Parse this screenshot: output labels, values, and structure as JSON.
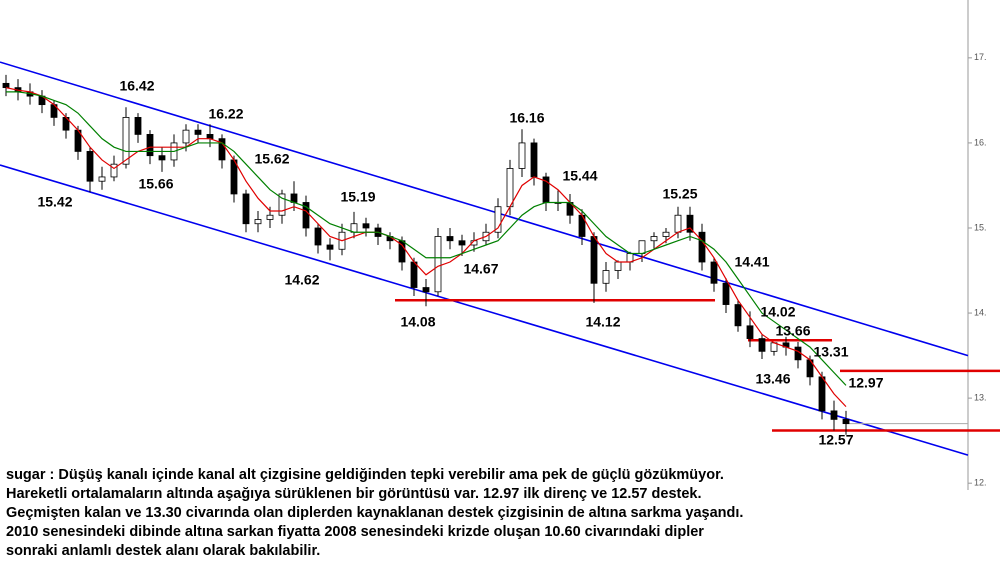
{
  "chart_data": {
    "type": "candlestick",
    "ylim": [
      11.92,
      17.68
    ],
    "yticks": [
      {
        "value": 17,
        "label": "17."
      },
      {
        "value": 16,
        "label": "16."
      },
      {
        "value": 15,
        "label": "15."
      },
      {
        "value": 14,
        "label": "14."
      },
      {
        "value": 13,
        "label": "13."
      },
      {
        "value": 12,
        "label": "12."
      }
    ],
    "open": [
      16.7,
      16.65,
      16.6,
      16.55,
      16.45,
      16.3,
      16.15,
      15.9,
      15.55,
      15.6,
      15.75,
      16.3,
      16.1,
      15.85,
      15.8,
      16.0,
      16.15,
      16.1,
      16.05,
      15.8,
      15.4,
      15.05,
      15.1,
      15.15,
      15.4,
      15.3,
      15.0,
      14.8,
      14.75,
      14.95,
      15.05,
      15.0,
      14.9,
      14.85,
      14.6,
      14.3,
      14.25,
      14.9,
      14.85,
      14.8,
      14.85,
      14.95,
      15.25,
      15.7,
      16.0,
      15.6,
      15.3,
      15.3,
      15.15,
      14.9,
      14.35,
      14.5,
      14.6,
      14.7,
      14.85,
      14.9,
      14.95,
      15.15,
      14.95,
      14.6,
      14.35,
      14.1,
      13.85,
      13.7,
      13.55,
      13.65,
      13.6,
      13.45,
      13.25,
      12.85,
      12.75
    ],
    "high": [
      16.8,
      16.75,
      16.7,
      16.62,
      16.5,
      16.35,
      16.2,
      15.95,
      15.72,
      15.85,
      16.42,
      16.35,
      16.15,
      15.95,
      16.1,
      16.22,
      16.22,
      16.22,
      16.1,
      15.85,
      15.45,
      15.2,
      15.25,
      15.45,
      15.55,
      15.38,
      15.05,
      14.88,
      15.05,
      15.19,
      15.12,
      15.05,
      14.95,
      14.9,
      14.65,
      14.4,
      15.0,
      15.0,
      14.92,
      14.95,
      15.05,
      15.35,
      15.8,
      16.16,
      16.05,
      15.65,
      15.44,
      15.4,
      15.22,
      14.95,
      14.6,
      14.62,
      14.72,
      14.82,
      14.95,
      15.0,
      15.25,
      15.25,
      15.05,
      14.65,
      14.41,
      14.15,
      14.02,
      13.75,
      13.66,
      13.72,
      13.66,
      13.5,
      13.31,
      12.97,
      12.85
    ],
    "low": [
      16.55,
      16.5,
      16.45,
      16.35,
      16.2,
      16.05,
      15.8,
      15.42,
      15.45,
      15.55,
      15.7,
      16.0,
      15.75,
      15.66,
      15.72,
      15.9,
      16.0,
      15.95,
      15.7,
      15.3,
      14.95,
      14.95,
      15.0,
      15.05,
      15.2,
      14.9,
      14.7,
      14.62,
      14.68,
      14.88,
      14.9,
      14.8,
      14.75,
      14.5,
      14.2,
      14.08,
      14.2,
      14.75,
      14.67,
      14.72,
      14.8,
      14.88,
      15.15,
      15.6,
      15.5,
      15.2,
      15.2,
      15.05,
      14.8,
      14.12,
      14.25,
      14.4,
      14.5,
      14.6,
      14.75,
      14.82,
      14.88,
      14.85,
      14.5,
      14.25,
      14.0,
      13.78,
      13.6,
      13.46,
      13.5,
      13.5,
      13.35,
      13.15,
      12.75,
      12.62,
      12.57
    ],
    "close": [
      16.65,
      16.6,
      16.55,
      16.45,
      16.3,
      16.15,
      15.9,
      15.55,
      15.6,
      15.75,
      16.3,
      16.1,
      15.85,
      15.8,
      16.0,
      16.15,
      16.1,
      16.05,
      15.8,
      15.4,
      15.05,
      15.1,
      15.15,
      15.4,
      15.3,
      15.0,
      14.8,
      14.75,
      14.95,
      15.05,
      15.0,
      14.9,
      14.85,
      14.6,
      14.3,
      14.25,
      14.9,
      14.85,
      14.8,
      14.85,
      14.95,
      15.25,
      15.7,
      16.0,
      15.6,
      15.3,
      15.3,
      15.15,
      14.9,
      14.35,
      14.5,
      14.6,
      14.7,
      14.85,
      14.9,
      14.95,
      15.15,
      14.95,
      14.6,
      14.35,
      14.1,
      13.85,
      13.7,
      13.55,
      13.65,
      13.6,
      13.45,
      13.25,
      12.85,
      12.75,
      12.7
    ],
    "series": [
      {
        "color": "#e00000",
        "values": [
          16.65,
          16.62,
          16.6,
          16.55,
          16.45,
          16.3,
          16.15,
          15.95,
          15.8,
          15.7,
          15.8,
          15.9,
          15.95,
          15.95,
          15.95,
          15.95,
          16.05,
          16.05,
          16.0,
          15.8,
          15.55,
          15.35,
          15.2,
          15.2,
          15.25,
          15.2,
          15.05,
          14.9,
          14.85,
          14.9,
          14.95,
          14.95,
          14.9,
          14.8,
          14.6,
          14.45,
          14.55,
          14.6,
          14.7,
          14.85,
          14.9,
          15.0,
          15.25,
          15.5,
          15.6,
          15.55,
          15.45,
          15.3,
          15.15,
          14.9,
          14.7,
          14.6,
          14.6,
          14.65,
          14.75,
          14.85,
          14.95,
          15.0,
          14.85,
          14.65,
          14.4,
          14.15,
          13.95,
          13.75,
          13.65,
          13.6,
          13.55,
          13.45,
          13.25,
          13.05,
          12.9
        ]
      },
      {
        "color": "#008000",
        "values": [
          16.6,
          16.6,
          16.58,
          16.55,
          16.5,
          16.45,
          16.35,
          16.2,
          16.05,
          15.95,
          15.9,
          15.9,
          15.9,
          15.9,
          15.9,
          15.95,
          16.0,
          16.0,
          16.0,
          15.9,
          15.75,
          15.6,
          15.45,
          15.35,
          15.3,
          15.25,
          15.15,
          15.05,
          15.0,
          14.95,
          14.95,
          14.95,
          14.9,
          14.85,
          14.75,
          14.65,
          14.65,
          14.65,
          14.7,
          14.75,
          14.8,
          14.85,
          15.0,
          15.15,
          15.25,
          15.3,
          15.3,
          15.3,
          15.2,
          15.05,
          14.9,
          14.8,
          14.7,
          14.7,
          14.75,
          14.8,
          14.85,
          14.9,
          14.85,
          14.75,
          14.6,
          14.4,
          14.2,
          14.0,
          13.9,
          13.8,
          13.7,
          13.6,
          13.45,
          13.3,
          13.15
        ]
      }
    ],
    "channel": {
      "color": "#0000ee",
      "upper": [
        16.95,
        13.5
      ],
      "lower": [
        15.74,
        12.33
      ]
    },
    "support_levels": {
      "color": "#e00000",
      "values": [
        14.15,
        13.68,
        13.32,
        12.62
      ]
    },
    "annotations": [
      16.42,
      16.22,
      15.42,
      15.66,
      15.62,
      15.19,
      14.62,
      14.08,
      14.67,
      16.16,
      15.44,
      14.12,
      15.25,
      14.41,
      14.02,
      13.66,
      13.31,
      13.46,
      12.97,
      12.57
    ]
  },
  "note": [
    "sugar : Düşüş kanalı içinde kanal alt çizgisine geldiğinden tepki verebilir ama pek de güçlü gözükmüyor.",
    "Hareketli ortalamaların altında aşağıya sürüklenen bir görüntüsü var. 12.97 ilk direnç ve 12.57 destek.",
    "Geçmişten kalan ve 13.30 civarında olan diplerden kaynaklanan destek çizgisinin de altına sarkma yaşandı.",
    "2010 senesindeki dibinde altına sarkan fiyatta 2008 senesindeki krizde oluşan 10.60 civarındaki dipler",
    "sonraki anlamlı destek alanı olarak bakılabilir."
  ]
}
